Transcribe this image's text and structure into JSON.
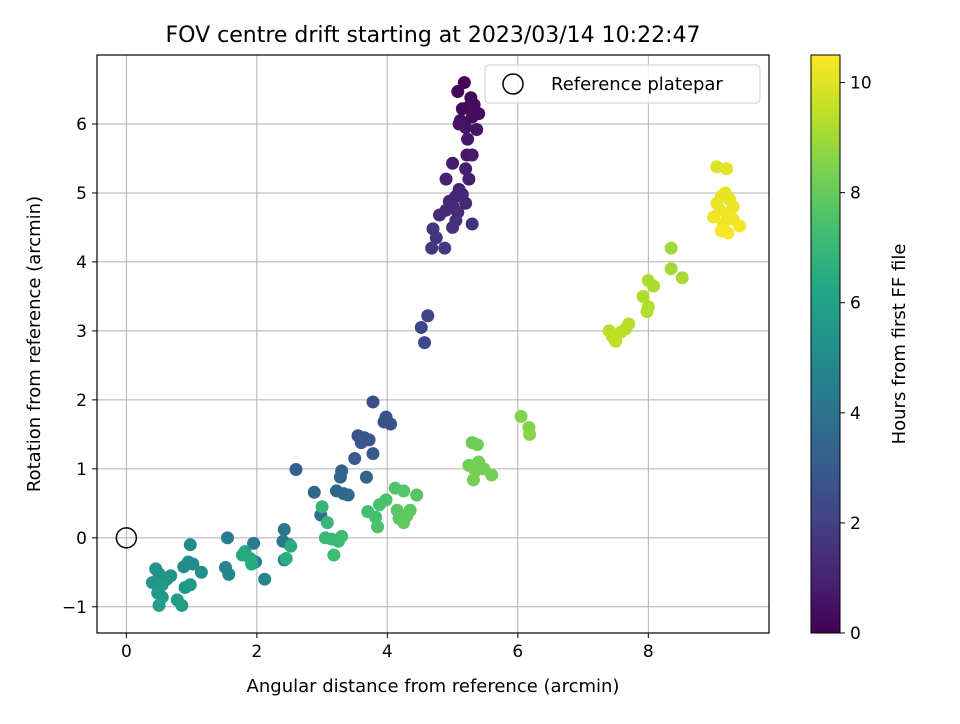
{
  "chart_data": {
    "type": "scatter",
    "title": "FOV centre drift starting at 2023/03/14 10:22:47",
    "xlabel": "Angular distance from reference (arcmin)",
    "ylabel": "Rotation from reference (arcmin)",
    "xlim": [
      -0.45,
      9.85
    ],
    "ylim": [
      -1.38,
      7.0
    ],
    "xticks": [
      0,
      2,
      4,
      6,
      8
    ],
    "yticks": [
      -1,
      0,
      1,
      2,
      3,
      4,
      5,
      6
    ],
    "xtick_labels": [
      "0",
      "2",
      "4",
      "6",
      "8"
    ],
    "ytick_labels": [
      "−1",
      "0",
      "1",
      "2",
      "3",
      "4",
      "5",
      "6"
    ],
    "grid": true,
    "legend": {
      "label": "Reference platepar",
      "placement": "top-right"
    },
    "reference_point": {
      "x": 0,
      "y": 0
    },
    "colormap": "viridis",
    "colorbar": {
      "label": "Hours from first FF file",
      "range": [
        0,
        10.5
      ],
      "ticks": [
        0,
        2,
        4,
        6,
        8,
        10
      ],
      "tick_labels": [
        "0",
        "2",
        "4",
        "6",
        "8",
        "10"
      ]
    },
    "points": [
      {
        "x": 5.18,
        "y": 6.6,
        "c": 0.05
      },
      {
        "x": 5.08,
        "y": 6.47,
        "c": 0.1
      },
      {
        "x": 5.28,
        "y": 6.38,
        "c": 0.15
      },
      {
        "x": 5.15,
        "y": 6.22,
        "c": 0.2
      },
      {
        "x": 5.25,
        "y": 6.25,
        "c": 0.25
      },
      {
        "x": 5.33,
        "y": 6.28,
        "c": 0.3
      },
      {
        "x": 5.4,
        "y": 6.15,
        "c": 0.35
      },
      {
        "x": 5.3,
        "y": 6.1,
        "c": 0.4
      },
      {
        "x": 5.12,
        "y": 6.05,
        "c": 0.45
      },
      {
        "x": 5.2,
        "y": 5.95,
        "c": 0.5
      },
      {
        "x": 5.37,
        "y": 5.92,
        "c": 0.55
      },
      {
        "x": 5.1,
        "y": 6.0,
        "c": 0.6
      },
      {
        "x": 5.23,
        "y": 5.78,
        "c": 0.65
      },
      {
        "x": 5.22,
        "y": 5.55,
        "c": 0.7
      },
      {
        "x": 5.3,
        "y": 5.55,
        "c": 0.75
      },
      {
        "x": 5.0,
        "y": 5.43,
        "c": 0.8
      },
      {
        "x": 5.2,
        "y": 5.35,
        "c": 0.85
      },
      {
        "x": 5.25,
        "y": 5.2,
        "c": 0.9
      },
      {
        "x": 4.9,
        "y": 5.2,
        "c": 0.95
      },
      {
        "x": 5.1,
        "y": 5.05,
        "c": 1.0
      },
      {
        "x": 5.15,
        "y": 4.98,
        "c": 1.05
      },
      {
        "x": 5.05,
        "y": 4.95,
        "c": 1.1
      },
      {
        "x": 4.95,
        "y": 4.88,
        "c": 1.12
      },
      {
        "x": 5.2,
        "y": 4.85,
        "c": 1.15
      },
      {
        "x": 5.0,
        "y": 4.82,
        "c": 1.2
      },
      {
        "x": 4.9,
        "y": 4.75,
        "c": 1.25
      },
      {
        "x": 5.08,
        "y": 4.72,
        "c": 1.3
      },
      {
        "x": 4.8,
        "y": 4.68,
        "c": 1.35
      },
      {
        "x": 5.05,
        "y": 4.6,
        "c": 1.4
      },
      {
        "x": 5.0,
        "y": 4.5,
        "c": 1.45
      },
      {
        "x": 5.3,
        "y": 4.55,
        "c": 1.5
      },
      {
        "x": 4.7,
        "y": 4.48,
        "c": 1.55
      },
      {
        "x": 4.75,
        "y": 4.35,
        "c": 1.6
      },
      {
        "x": 4.68,
        "y": 4.2,
        "c": 1.65
      },
      {
        "x": 4.88,
        "y": 4.2,
        "c": 1.7
      },
      {
        "x": 4.62,
        "y": 3.22,
        "c": 2.1
      },
      {
        "x": 4.52,
        "y": 3.05,
        "c": 2.15
      },
      {
        "x": 4.57,
        "y": 2.83,
        "c": 2.2
      },
      {
        "x": 3.78,
        "y": 1.97,
        "c": 2.5
      },
      {
        "x": 3.98,
        "y": 1.75,
        "c": 2.55
      },
      {
        "x": 3.95,
        "y": 1.68,
        "c": 2.6
      },
      {
        "x": 4.05,
        "y": 1.65,
        "c": 2.65
      },
      {
        "x": 3.55,
        "y": 1.48,
        "c": 2.7
      },
      {
        "x": 3.65,
        "y": 1.45,
        "c": 2.75
      },
      {
        "x": 3.72,
        "y": 1.42,
        "c": 2.8
      },
      {
        "x": 3.6,
        "y": 1.38,
        "c": 2.85
      },
      {
        "x": 3.78,
        "y": 1.22,
        "c": 2.9
      },
      {
        "x": 3.5,
        "y": 1.15,
        "c": 3.0
      },
      {
        "x": 2.6,
        "y": 0.99,
        "c": 3.2
      },
      {
        "x": 3.3,
        "y": 0.97,
        "c": 3.3
      },
      {
        "x": 3.28,
        "y": 0.88,
        "c": 3.35
      },
      {
        "x": 3.68,
        "y": 0.88,
        "c": 3.4
      },
      {
        "x": 3.22,
        "y": 0.68,
        "c": 3.45
      },
      {
        "x": 2.88,
        "y": 0.66,
        "c": 3.5
      },
      {
        "x": 3.33,
        "y": 0.64,
        "c": 3.55
      },
      {
        "x": 3.4,
        "y": 0.62,
        "c": 3.6
      },
      {
        "x": 2.98,
        "y": 0.33,
        "c": 3.8
      },
      {
        "x": 2.42,
        "y": 0.12,
        "c": 4.1
      },
      {
        "x": 2.4,
        "y": -0.05,
        "c": 4.2
      },
      {
        "x": 2.5,
        "y": -0.1,
        "c": 4.25
      },
      {
        "x": 1.95,
        "y": -0.08,
        "c": 4.3
      },
      {
        "x": 1.55,
        "y": 0.0,
        "c": 4.4
      },
      {
        "x": 2.42,
        "y": -0.32,
        "c": 4.5
      },
      {
        "x": 1.98,
        "y": -0.35,
        "c": 4.6
      },
      {
        "x": 1.52,
        "y": -0.43,
        "c": 4.7
      },
      {
        "x": 1.57,
        "y": -0.53,
        "c": 4.75
      },
      {
        "x": 2.12,
        "y": -0.6,
        "c": 4.8
      },
      {
        "x": 0.98,
        "y": -0.1,
        "c": 5.0
      },
      {
        "x": 0.95,
        "y": -0.35,
        "c": 5.05
      },
      {
        "x": 1.02,
        "y": -0.38,
        "c": 5.1
      },
      {
        "x": 0.88,
        "y": -0.42,
        "c": 5.15
      },
      {
        "x": 1.15,
        "y": -0.5,
        "c": 5.2
      },
      {
        "x": 0.45,
        "y": -0.45,
        "c": 5.3
      },
      {
        "x": 0.5,
        "y": -0.52,
        "c": 5.35
      },
      {
        "x": 0.68,
        "y": -0.55,
        "c": 5.4
      },
      {
        "x": 0.62,
        "y": -0.6,
        "c": 5.45
      },
      {
        "x": 0.4,
        "y": -0.65,
        "c": 5.5
      },
      {
        "x": 0.55,
        "y": -0.68,
        "c": 5.55
      },
      {
        "x": 0.98,
        "y": -0.68,
        "c": 5.6
      },
      {
        "x": 0.9,
        "y": -0.72,
        "c": 5.62
      },
      {
        "x": 0.48,
        "y": -0.8,
        "c": 5.65
      },
      {
        "x": 0.55,
        "y": -0.86,
        "c": 5.7
      },
      {
        "x": 0.78,
        "y": -0.9,
        "c": 5.75
      },
      {
        "x": 0.85,
        "y": -0.98,
        "c": 5.8
      },
      {
        "x": 0.5,
        "y": -0.98,
        "c": 5.85
      },
      {
        "x": 1.82,
        "y": -0.2,
        "c": 6.3
      },
      {
        "x": 1.78,
        "y": -0.25,
        "c": 6.35
      },
      {
        "x": 1.9,
        "y": -0.3,
        "c": 6.4
      },
      {
        "x": 1.92,
        "y": -0.38,
        "c": 6.45
      },
      {
        "x": 2.52,
        "y": -0.12,
        "c": 6.5
      },
      {
        "x": 2.45,
        "y": -0.3,
        "c": 6.55
      },
      {
        "x": 3.0,
        "y": 0.45,
        "c": 6.9
      },
      {
        "x": 3.08,
        "y": 0.22,
        "c": 6.95
      },
      {
        "x": 3.05,
        "y": 0.0,
        "c": 7.0
      },
      {
        "x": 3.15,
        "y": -0.02,
        "c": 7.05
      },
      {
        "x": 3.25,
        "y": -0.05,
        "c": 7.1
      },
      {
        "x": 3.3,
        "y": 0.02,
        "c": 7.15
      },
      {
        "x": 3.18,
        "y": -0.25,
        "c": 7.2
      },
      {
        "x": 3.7,
        "y": 0.38,
        "c": 7.3
      },
      {
        "x": 3.82,
        "y": 0.3,
        "c": 7.35
      },
      {
        "x": 3.88,
        "y": 0.48,
        "c": 7.4
      },
      {
        "x": 3.98,
        "y": 0.55,
        "c": 7.45
      },
      {
        "x": 3.85,
        "y": 0.16,
        "c": 7.5
      },
      {
        "x": 4.12,
        "y": 0.72,
        "c": 7.6
      },
      {
        "x": 4.25,
        "y": 0.68,
        "c": 7.65
      },
      {
        "x": 4.45,
        "y": 0.62,
        "c": 7.7
      },
      {
        "x": 4.15,
        "y": 0.4,
        "c": 7.75
      },
      {
        "x": 4.35,
        "y": 0.4,
        "c": 7.8
      },
      {
        "x": 4.18,
        "y": 0.28,
        "c": 7.82
      },
      {
        "x": 4.3,
        "y": 0.32,
        "c": 7.85
      },
      {
        "x": 4.25,
        "y": 0.22,
        "c": 7.88
      },
      {
        "x": 5.3,
        "y": 1.38,
        "c": 8.1
      },
      {
        "x": 5.38,
        "y": 1.35,
        "c": 8.15
      },
      {
        "x": 5.25,
        "y": 1.05,
        "c": 8.2
      },
      {
        "x": 5.4,
        "y": 1.1,
        "c": 8.22
      },
      {
        "x": 5.48,
        "y": 1.0,
        "c": 8.25
      },
      {
        "x": 5.35,
        "y": 0.97,
        "c": 8.28
      },
      {
        "x": 5.6,
        "y": 0.91,
        "c": 8.3
      },
      {
        "x": 5.32,
        "y": 0.84,
        "c": 8.32
      },
      {
        "x": 6.05,
        "y": 1.76,
        "c": 8.5
      },
      {
        "x": 6.17,
        "y": 1.6,
        "c": 8.55
      },
      {
        "x": 6.18,
        "y": 1.5,
        "c": 8.6
      },
      {
        "x": 8.35,
        "y": 4.2,
        "c": 9.0
      },
      {
        "x": 8.35,
        "y": 3.9,
        "c": 9.05
      },
      {
        "x": 8.52,
        "y": 3.77,
        "c": 9.1
      },
      {
        "x": 8.0,
        "y": 3.73,
        "c": 9.15
      },
      {
        "x": 8.08,
        "y": 3.65,
        "c": 9.2
      },
      {
        "x": 7.92,
        "y": 3.5,
        "c": 9.25
      },
      {
        "x": 8.0,
        "y": 3.35,
        "c": 9.3
      },
      {
        "x": 7.98,
        "y": 3.28,
        "c": 9.32
      },
      {
        "x": 7.7,
        "y": 3.1,
        "c": 9.35
      },
      {
        "x": 7.65,
        "y": 3.03,
        "c": 9.38
      },
      {
        "x": 7.4,
        "y": 3.0,
        "c": 9.4
      },
      {
        "x": 7.58,
        "y": 2.98,
        "c": 9.42
      },
      {
        "x": 7.45,
        "y": 2.92,
        "c": 9.45
      },
      {
        "x": 7.5,
        "y": 2.85,
        "c": 9.48
      },
      {
        "x": 9.05,
        "y": 5.38,
        "c": 10.0
      },
      {
        "x": 9.2,
        "y": 5.35,
        "c": 10.05
      },
      {
        "x": 9.18,
        "y": 5.0,
        "c": 10.1
      },
      {
        "x": 9.12,
        "y": 4.95,
        "c": 10.12
      },
      {
        "x": 9.25,
        "y": 4.9,
        "c": 10.15
      },
      {
        "x": 9.05,
        "y": 4.85,
        "c": 10.18
      },
      {
        "x": 9.3,
        "y": 4.8,
        "c": 10.2
      },
      {
        "x": 9.1,
        "y": 4.75,
        "c": 10.22
      },
      {
        "x": 9.2,
        "y": 4.7,
        "c": 10.25
      },
      {
        "x": 9.0,
        "y": 4.65,
        "c": 10.28
      },
      {
        "x": 9.3,
        "y": 4.62,
        "c": 10.3
      },
      {
        "x": 9.15,
        "y": 4.55,
        "c": 10.32
      },
      {
        "x": 9.4,
        "y": 4.52,
        "c": 10.35
      },
      {
        "x": 9.12,
        "y": 4.45,
        "c": 10.38
      },
      {
        "x": 9.22,
        "y": 4.42,
        "c": 10.4
      }
    ]
  }
}
